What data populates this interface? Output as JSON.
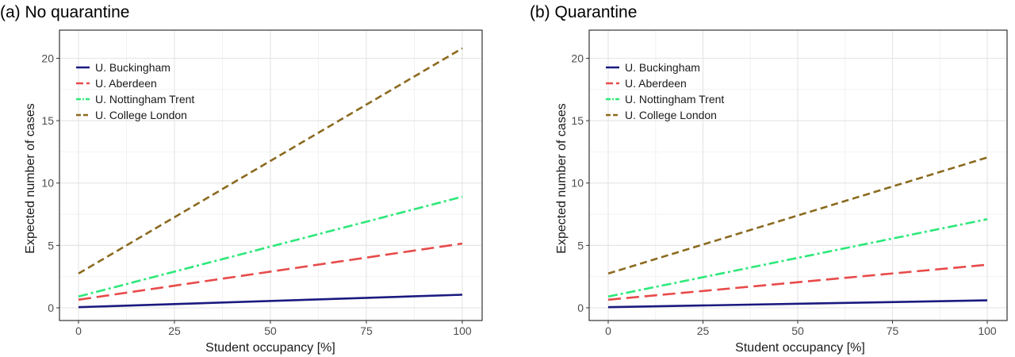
{
  "chart_data": [
    {
      "type": "line",
      "title": "(a) No quarantine",
      "xlabel": "Student occupancy [%]",
      "ylabel": "Expected number of cases",
      "xlim": [
        0,
        100
      ],
      "ylim": [
        0,
        22
      ],
      "xticks": [
        0,
        25,
        50,
        75,
        100
      ],
      "yticks": [
        0,
        5,
        10,
        15,
        20
      ],
      "grid": true,
      "legend_position": "top-left",
      "series": [
        {
          "name": "U. Buckingham",
          "color": "#1a1a80",
          "dash": "solid",
          "x": [
            0,
            100
          ],
          "y": [
            0.05,
            1.05
          ]
        },
        {
          "name": "U. Aberdeen",
          "color": "#e84a4a",
          "dash": "longdash",
          "x": [
            0,
            100
          ],
          "y": [
            0.65,
            5.15
          ]
        },
        {
          "name": "U. Nottingham Trent",
          "color": "#2de87a",
          "dash": "dotdash",
          "x": [
            0,
            100
          ],
          "y": [
            0.9,
            8.9
          ]
        },
        {
          "name": "U. College London",
          "color": "#8b6a1f",
          "dash": "dashed",
          "x": [
            0,
            100
          ],
          "y": [
            2.75,
            20.8
          ]
        }
      ]
    },
    {
      "type": "line",
      "title": "(b) Quarantine",
      "xlabel": "Student occupancy [%]",
      "ylabel": "Expected number of cases",
      "xlim": [
        0,
        100
      ],
      "ylim": [
        0,
        22
      ],
      "xticks": [
        0,
        25,
        50,
        75,
        100
      ],
      "yticks": [
        0,
        5,
        10,
        15,
        20
      ],
      "grid": true,
      "legend_position": "top-left",
      "series": [
        {
          "name": "U. Buckingham",
          "color": "#1a1a80",
          "dash": "solid",
          "x": [
            0,
            100
          ],
          "y": [
            0.05,
            0.6
          ]
        },
        {
          "name": "U. Aberdeen",
          "color": "#e84a4a",
          "dash": "longdash",
          "x": [
            0,
            100
          ],
          "y": [
            0.65,
            3.45
          ]
        },
        {
          "name": "U. Nottingham Trent",
          "color": "#2de87a",
          "dash": "dotdash",
          "x": [
            0,
            100
          ],
          "y": [
            0.9,
            7.1
          ]
        },
        {
          "name": "U. College London",
          "color": "#8b6a1f",
          "dash": "dashed",
          "x": [
            0,
            100
          ],
          "y": [
            2.75,
            12.05
          ]
        }
      ]
    }
  ]
}
